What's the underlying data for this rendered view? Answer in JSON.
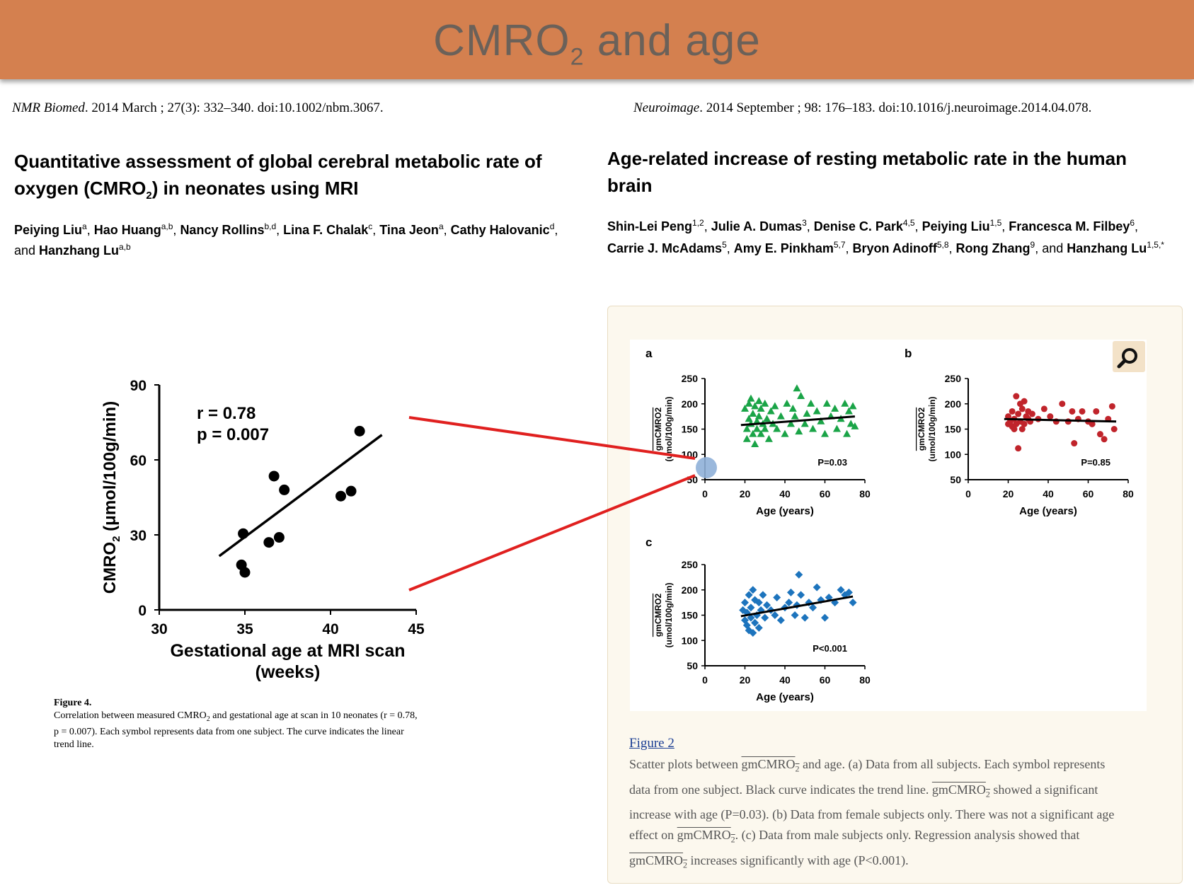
{
  "slide": {
    "title": "CMRO",
    "title_sub": "2",
    "title_tail": " and age",
    "accent_color": "#d4804f"
  },
  "left_paper": {
    "citation_journal": "NMR Biomed",
    "citation_rest": ". 2014 March ; 27(3): 332–340. doi:10.1002/nbm.3067.",
    "title_line1": "Quantitative assessment of global cerebral metabolic rate of",
    "title_line2a": "oxygen (CMRO",
    "title_line2_sub": "2",
    "title_line2b": ") in neonates using MRI",
    "authors": [
      {
        "name": "Peiying Liu",
        "sup": "a",
        "sep": ", "
      },
      {
        "name": "Hao Huang",
        "sup": "a,b",
        "sep": ", "
      },
      {
        "name": "Nancy Rollins",
        "sup": "b,d",
        "sep": ", "
      },
      {
        "name": "Lina F. Chalak",
        "sup": "c",
        "sep": ", "
      },
      {
        "name": "Tina Jeon",
        "sup": "a",
        "sep": ", "
      },
      {
        "name": "Cathy Halovanic",
        "sup": "d",
        "sep": ", and "
      },
      {
        "name": "Hanzhang Lu",
        "sup": "a,b",
        "sep": ""
      }
    ],
    "figure_caption_title": "Figure 4.",
    "figure_caption_a": "Correlation between measured CMRO",
    "figure_caption_sub": "2",
    "figure_caption_b": " and gestational age at scan in 10 neonates (r = 0.78,",
    "figure_caption_c": "p = 0.007). Each symbol represents data from one subject. The curve indicates the linear",
    "figure_caption_d": "trend line."
  },
  "right_paper": {
    "citation_journal": "Neuroimage",
    "citation_rest": ". 2014 September ; 98: 176–183. doi:10.1016/j.neuroimage.2014.04.078.",
    "title_line1": "Age-related increase of resting metabolic rate in the human",
    "title_line2": "brain",
    "authors": [
      {
        "name": "Shin-Lei Peng",
        "sup": "1,2",
        "sep": ", "
      },
      {
        "name": "Julie A. Dumas",
        "sup": "3",
        "sep": ", "
      },
      {
        "name": "Denise C. Park",
        "sup": "4,5",
        "sep": ", "
      },
      {
        "name": "Peiying Liu",
        "sup": "1,5",
        "sep": ", "
      },
      {
        "name": "Francesca M. Filbey",
        "sup": "6",
        "sep": ", "
      },
      {
        "name": "Carrie J. McAdams",
        "sup": "5",
        "sep": ", "
      },
      {
        "name": "Amy E. Pinkham",
        "sup": "5,7",
        "sep": ", "
      },
      {
        "name": "Bryon Adinoff",
        "sup": "5,8",
        "sep": ", "
      },
      {
        "name": "Rong Zhang",
        "sup": "9",
        "sep": ", and "
      },
      {
        "name": "Hanzhang Lu",
        "sup": "1,5,*",
        "sep": ""
      }
    ],
    "figure_link": "Figure 2",
    "caption_lines": [
      {
        "pre": "Scatter plots between ",
        "ov": "gmCMRO",
        "sub": "2",
        "post": " and age. (a) Data from all subjects. Each symbol represents"
      },
      {
        "pre": "data from one subject. Black curve indicates the trend line. ",
        "ov": "gmCMRO",
        "sub": "2",
        "post": " showed a significant"
      },
      {
        "pre": "increase with age (P=0.03). (b) Data from female subjects only. There was not a significant age",
        "ov": "",
        "sub": "",
        "post": ""
      },
      {
        "pre": "effect on ",
        "ov": "gmCMRO",
        "sub": "2",
        "post": ". (c) Data from male subjects only. Regression analysis showed that"
      },
      {
        "pre": "",
        "ov": "gmCMRO",
        "sub": "2",
        "post": " increases significantly with age (P<0.001)."
      }
    ]
  },
  "chart_data": [
    {
      "type": "scatter",
      "title": "",
      "xlabel": "Gestational age at MRI scan (weeks)",
      "ylabel": "CMRO2 (μmol/100g/min)",
      "xlim": [
        30,
        45
      ],
      "ylim": [
        0,
        90
      ],
      "xticks": [
        30,
        35,
        40,
        45
      ],
      "yticks": [
        0,
        30,
        60,
        90
      ],
      "annotation": [
        "r = 0.78",
        "p = 0.007"
      ],
      "points": [
        {
          "x": 34.9,
          "y": 30.5
        },
        {
          "x": 34.8,
          "y": 18
        },
        {
          "x": 35.0,
          "y": 15
        },
        {
          "x": 36.4,
          "y": 27
        },
        {
          "x": 37.0,
          "y": 29
        },
        {
          "x": 36.7,
          "y": 53.5
        },
        {
          "x": 37.3,
          "y": 48
        },
        {
          "x": 40.6,
          "y": 45.5
        },
        {
          "x": 41.2,
          "y": 47.5
        },
        {
          "x": 41.7,
          "y": 71.5
        }
      ],
      "trend": [
        [
          33.5,
          21.5
        ],
        [
          43.0,
          70.0
        ]
      ]
    },
    {
      "type": "scatter",
      "panel": "a",
      "series_name": "all subjects",
      "color": "#1aa447",
      "marker": "triangle",
      "xlabel": "Age (years)",
      "ylabel": "gmCMRO2 (umol/100g/min)",
      "xlim": [
        0,
        80
      ],
      "ylim": [
        50,
        250
      ],
      "xticks": [
        0,
        20,
        40,
        60,
        80
      ],
      "yticks": [
        50,
        100,
        150,
        200,
        250
      ],
      "pvalue": "P=0.03",
      "points": [
        [
          20,
          190
        ],
        [
          21,
          150
        ],
        [
          21,
          130
        ],
        [
          22,
          200
        ],
        [
          22,
          170
        ],
        [
          23,
          160
        ],
        [
          23,
          210
        ],
        [
          24,
          140
        ],
        [
          24,
          180
        ],
        [
          25,
          120
        ],
        [
          25,
          195
        ],
        [
          26,
          165
        ],
        [
          26,
          150
        ],
        [
          27,
          205
        ],
        [
          27,
          175
        ],
        [
          28,
          140
        ],
        [
          28,
          190
        ],
        [
          29,
          160
        ],
        [
          30,
          200
        ],
        [
          30,
          150
        ],
        [
          31,
          170
        ],
        [
          32,
          130
        ],
        [
          33,
          185
        ],
        [
          34,
          160
        ],
        [
          35,
          195
        ],
        [
          36,
          150
        ],
        [
          38,
          175
        ],
        [
          40,
          140
        ],
        [
          41,
          200
        ],
        [
          43,
          160
        ],
        [
          44,
          190
        ],
        [
          45,
          175
        ],
        [
          46,
          230
        ],
        [
          47,
          145
        ],
        [
          48,
          215
        ],
        [
          50,
          160
        ],
        [
          51,
          180
        ],
        [
          53,
          200
        ],
        [
          54,
          150
        ],
        [
          56,
          185
        ],
        [
          58,
          165
        ],
        [
          60,
          140
        ],
        [
          61,
          200
        ],
        [
          63,
          175
        ],
        [
          65,
          190
        ],
        [
          66,
          150
        ],
        [
          68,
          170
        ],
        [
          70,
          200
        ],
        [
          71,
          140
        ],
        [
          72,
          185
        ],
        [
          73,
          160
        ],
        [
          74,
          195
        ],
        [
          75,
          155
        ]
      ],
      "trend": [
        [
          18,
          158
        ],
        [
          75,
          175
        ]
      ]
    },
    {
      "type": "scatter",
      "panel": "b",
      "series_name": "female subjects",
      "color": "#c0242b",
      "marker": "circle",
      "xlabel": "Age (years)",
      "ylabel": "gmCMRO2 (umol/100g/min)",
      "xlim": [
        0,
        80
      ],
      "ylim": [
        50,
        250
      ],
      "xticks": [
        0,
        20,
        40,
        60,
        80
      ],
      "yticks": [
        50,
        100,
        150,
        200,
        250
      ],
      "pvalue": "P=0.85",
      "points": [
        [
          20,
          175
        ],
        [
          20,
          160
        ],
        [
          21,
          165
        ],
        [
          22,
          155
        ],
        [
          22,
          185
        ],
        [
          23,
          150
        ],
        [
          23,
          170
        ],
        [
          24,
          215
        ],
        [
          24,
          160
        ],
        [
          25,
          112
        ],
        [
          25,
          180
        ],
        [
          26,
          165
        ],
        [
          26,
          200
        ],
        [
          27,
          150
        ],
        [
          27,
          190
        ],
        [
          28,
          205
        ],
        [
          28,
          160
        ],
        [
          29,
          175
        ],
        [
          30,
          185
        ],
        [
          30,
          170
        ],
        [
          31,
          165
        ],
        [
          32,
          180
        ],
        [
          35,
          170
        ],
        [
          38,
          190
        ],
        [
          41,
          175
        ],
        [
          44,
          165
        ],
        [
          47,
          200
        ],
        [
          50,
          165
        ],
        [
          52,
          185
        ],
        [
          53,
          122
        ],
        [
          55,
          170
        ],
        [
          57,
          185
        ],
        [
          60,
          165
        ],
        [
          62,
          160
        ],
        [
          64,
          185
        ],
        [
          66,
          140
        ],
        [
          68,
          130
        ],
        [
          70,
          170
        ],
        [
          72,
          195
        ],
        [
          73,
          150
        ]
      ],
      "trend": [
        [
          18,
          170
        ],
        [
          74,
          165
        ]
      ]
    },
    {
      "type": "scatter",
      "panel": "c",
      "series_name": "male subjects",
      "color": "#1d74bd",
      "marker": "diamond",
      "xlabel": "Age (years)",
      "ylabel": "gmCMRO2 (umol/100g/min)",
      "xlim": [
        0,
        80
      ],
      "ylim": [
        50,
        250
      ],
      "xticks": [
        0,
        20,
        40,
        60,
        80
      ],
      "yticks": [
        50,
        100,
        150,
        200,
        250
      ],
      "pvalue": "P<0.001",
      "points": [
        [
          19,
          160
        ],
        [
          20,
          140
        ],
        [
          20,
          175
        ],
        [
          21,
          130
        ],
        [
          21,
          155
        ],
        [
          22,
          190
        ],
        [
          22,
          120
        ],
        [
          23,
          165
        ],
        [
          23,
          145
        ],
        [
          24,
          200
        ],
        [
          24,
          115
        ],
        [
          25,
          180
        ],
        [
          25,
          135
        ],
        [
          26,
          150
        ],
        [
          27,
          175
        ],
        [
          27,
          125
        ],
        [
          28,
          160
        ],
        [
          29,
          190
        ],
        [
          30,
          145
        ],
        [
          31,
          170
        ],
        [
          33,
          160
        ],
        [
          35,
          150
        ],
        [
          36,
          185
        ],
        [
          38,
          140
        ],
        [
          40,
          165
        ],
        [
          42,
          175
        ],
        [
          43,
          195
        ],
        [
          45,
          150
        ],
        [
          46,
          170
        ],
        [
          47,
          230
        ],
        [
          48,
          190
        ],
        [
          50,
          145
        ],
        [
          52,
          175
        ],
        [
          54,
          165
        ],
        [
          56,
          205
        ],
        [
          58,
          180
        ],
        [
          60,
          145
        ],
        [
          62,
          185
        ],
        [
          65,
          175
        ],
        [
          68,
          200
        ],
        [
          70,
          190
        ],
        [
          72,
          195
        ],
        [
          74,
          175
        ]
      ],
      "trend": [
        [
          18,
          148
        ],
        [
          74,
          187
        ]
      ]
    }
  ],
  "connector": {
    "color": "#e0201f"
  },
  "search_icon": "magnifier-icon"
}
